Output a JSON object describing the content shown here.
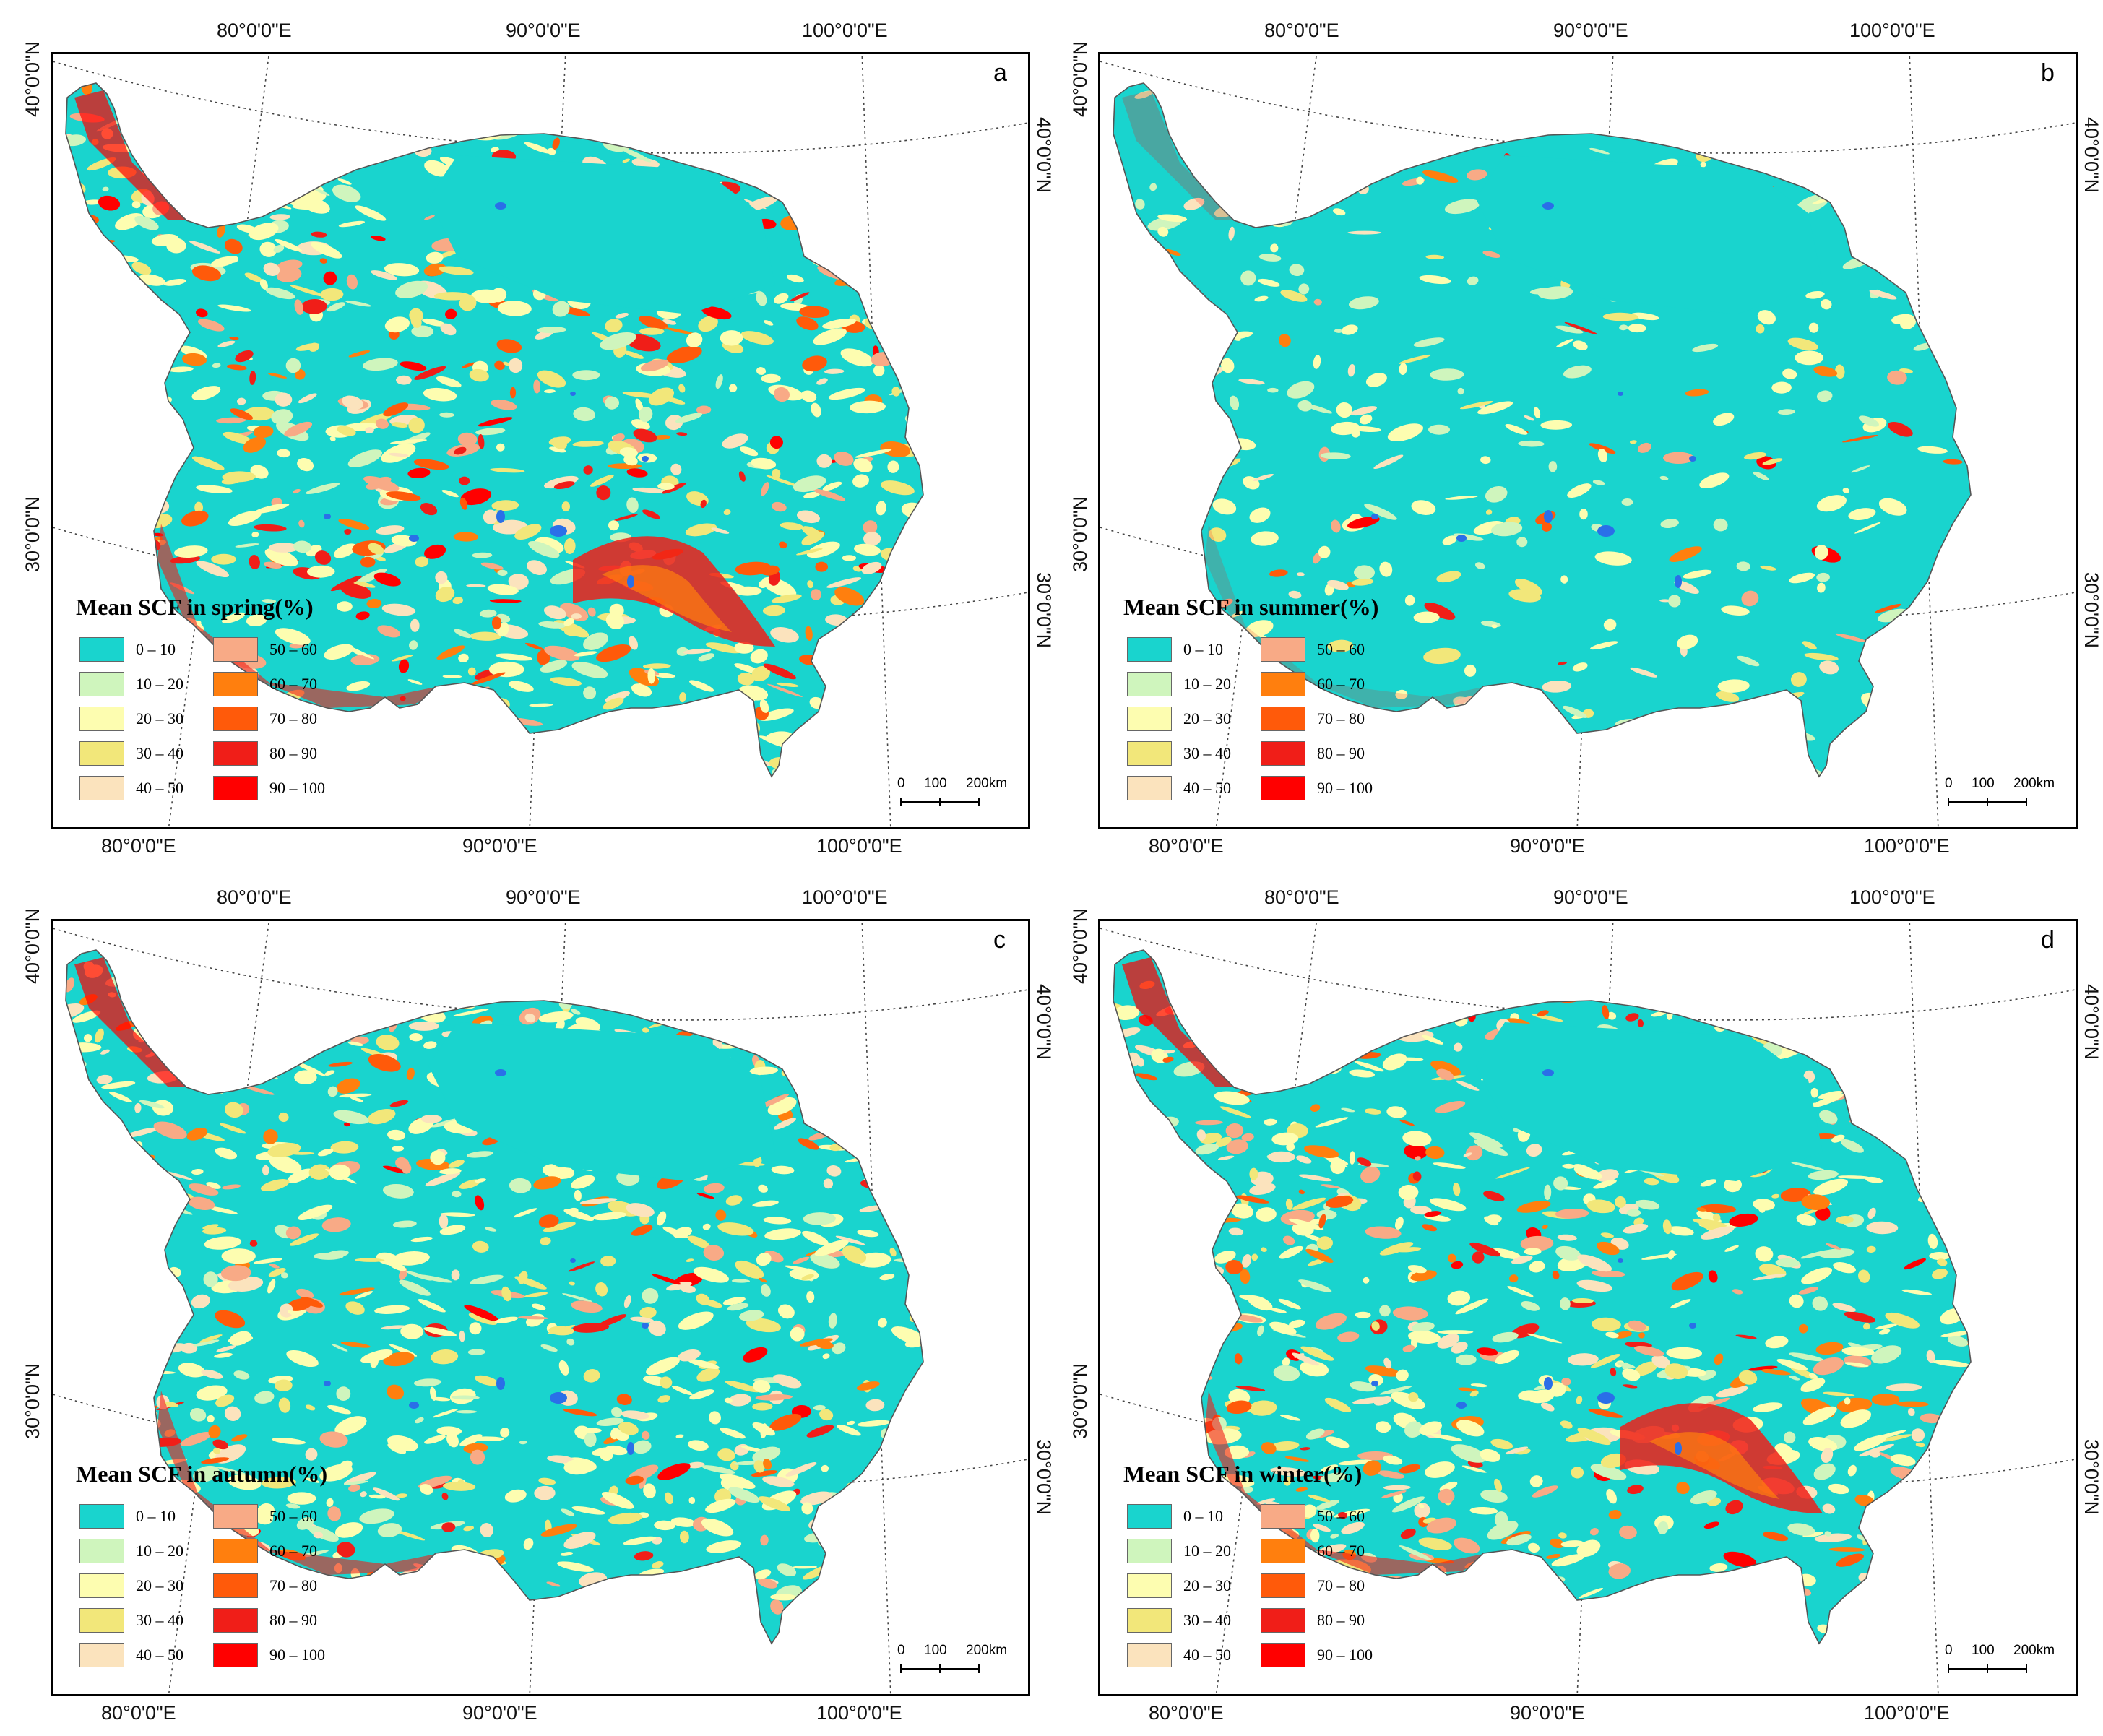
{
  "panels": [
    {
      "letter": "a",
      "legend_title": "Mean SCF in spring(%)",
      "scene": "spring",
      "coords": {
        "top": [
          "80°0'0\"E",
          "90°0'0\"E",
          "100°0'0\"E"
        ],
        "bottom": [
          "80°0'0\"E",
          "90°0'0\"E",
          "100°0'0\"E"
        ],
        "left": [
          "40°0'0\"N",
          "30°0'0\"N"
        ],
        "right": [
          "40°0'0\"N",
          "30°0'0\"N"
        ]
      },
      "scale": {
        "labels": [
          "0",
          "100",
          "200km"
        ]
      }
    },
    {
      "letter": "b",
      "legend_title": "Mean SCF in summer(%)",
      "scene": "summer",
      "coords": {
        "top": [
          "80°0'0\"E",
          "90°0'0\"E",
          "100°0'0\"E"
        ],
        "bottom": [
          "80°0'0\"E",
          "90°0'0\"E",
          "100°0'0\"E"
        ],
        "left": [
          "40°0'0\"N",
          "30°0'0\"N"
        ],
        "right": [
          "40°0'0\"N",
          "30°0'0\"N"
        ]
      },
      "scale": {
        "labels": [
          "0",
          "100",
          "200km"
        ]
      }
    },
    {
      "letter": "c",
      "legend_title": "Mean SCF in autumn(%)",
      "scene": "autumn",
      "coords": {
        "top": [
          "80°0'0\"E",
          "90°0'0\"E",
          "100°0'0\"E"
        ],
        "bottom": [
          "80°0'0\"E",
          "90°0'0\"E",
          "100°0'0\"E"
        ],
        "left": [
          "40°0'0\"N",
          "30°0'0\"N"
        ],
        "right": [
          "40°0'0\"N",
          "30°0'0\"N"
        ]
      },
      "scale": {
        "labels": [
          "0",
          "100",
          "200km"
        ]
      }
    },
    {
      "letter": "d",
      "legend_title": "Mean SCF in winter(%)",
      "scene": "winter",
      "coords": {
        "top": [
          "80°0'0\"E",
          "90°0'0\"E",
          "100°0'0\"E"
        ],
        "bottom": [
          "80°0'0\"E",
          "90°0'0\"E",
          "100°0'0\"E"
        ],
        "left": [
          "40°0'0\"N",
          "30°0'0\"N"
        ],
        "right": [
          "40°0'0\"N",
          "30°0'0\"N"
        ]
      },
      "scale": {
        "labels": [
          "0",
          "100",
          "200km"
        ]
      }
    }
  ],
  "legend_classes": [
    {
      "label": "0 – 10",
      "color": "#19d4ce"
    },
    {
      "label": "10 – 20",
      "color": "#cff5bd"
    },
    {
      "label": "20 – 30",
      "color": "#fdfdb0"
    },
    {
      "label": "30 – 40",
      "color": "#f2e77a"
    },
    {
      "label": "40 – 50",
      "color": "#fbe3bd"
    },
    {
      "label": "50 – 60",
      "color": "#f8aa86"
    },
    {
      "label": "60 – 70",
      "color": "#ff7f0e"
    },
    {
      "label": "70 – 80",
      "color": "#ff5a0a"
    },
    {
      "label": "80 – 90",
      "color": "#f01e18"
    },
    {
      "label": "90 – 100",
      "color": "#ff0000"
    }
  ],
  "lake_color": "#2a6fe8"
}
